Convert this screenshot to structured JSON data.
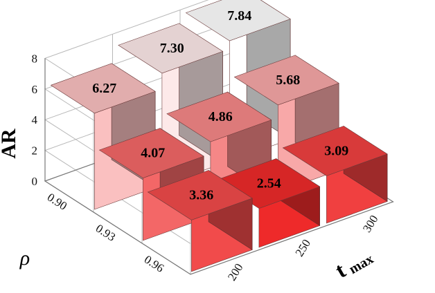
{
  "chart_data": {
    "type": "bar3d",
    "zlabel": "AR",
    "ylabel": "ρ",
    "xlabel_main": "t",
    "xlabel_sub": "max",
    "x_categories": [
      "200",
      "250",
      "300"
    ],
    "y_categories": [
      "0.90",
      "0.93",
      "0.96"
    ],
    "z_ticks": [
      "0",
      "2",
      "4",
      "6",
      "8"
    ],
    "zlim": [
      0,
      8
    ],
    "values": [
      [
        6.27,
        7.3,
        7.84
      ],
      [
        4.07,
        4.86,
        5.68
      ],
      [
        3.36,
        2.54,
        3.09
      ]
    ],
    "value_labels": [
      [
        "6.27",
        "7.30",
        "7.84"
      ],
      [
        "4.07",
        "4.86",
        "5.68"
      ],
      [
        "3.36",
        "2.54",
        "3.09"
      ]
    ],
    "colors": {
      "low": "#ee2a2a",
      "high": "#ffffff"
    },
    "grid": true
  }
}
